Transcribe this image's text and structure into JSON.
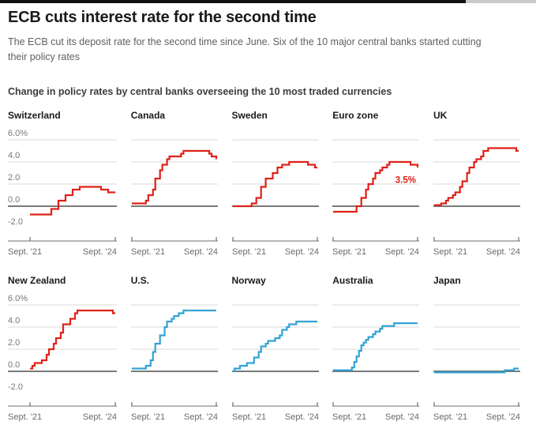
{
  "header": {
    "title": "ECB cuts interest rate for the second time",
    "subtitle": "The ECB cut its deposit rate for the second time since June. Six of the 10 major central banks started cutting their policy rates",
    "section_heading": "Change in policy rates by central banks overseeing the 10 most traded currencies"
  },
  "colors": {
    "cutting_line": "#df2118",
    "holding_line": "#33a3d4",
    "gridline": "#d9d9d9",
    "zero_line": "#4d4d4d",
    "axis_line": "#6e6e6e",
    "tick_label": "#777777",
    "annotation": "#df2118"
  },
  "chart_data": {
    "type": "line",
    "subtype": "step",
    "title": "Change in policy rates by central banks overseeing the 10 most traded currencies",
    "x_axis": {
      "start_label": "Sept. '21",
      "end_label": "Sept. '24",
      "start_month": 0,
      "end_month": 36
    },
    "y_axis": {
      "tick_labels": [
        "6.0%",
        "4.0",
        "2.0",
        "0.0",
        "-2.0"
      ],
      "tick_values": [
        6,
        4,
        2,
        0,
        -2
      ],
      "ylim": [
        -2,
        6
      ],
      "unit": "%",
      "grid": true
    },
    "legend_position": "none",
    "panels": [
      {
        "name": "Switzerland",
        "color": "red",
        "show_y_labels": true,
        "points": [
          [
            0,
            -0.75
          ],
          [
            9,
            -0.25
          ],
          [
            12,
            0.5
          ],
          [
            15,
            1.0
          ],
          [
            18,
            1.5
          ],
          [
            21,
            1.75
          ],
          [
            30,
            1.5
          ],
          [
            33,
            1.25
          ],
          [
            36,
            1.25
          ]
        ]
      },
      {
        "name": "Canada",
        "color": "red",
        "show_y_labels": false,
        "points": [
          [
            0,
            0.25
          ],
          [
            6,
            0.5
          ],
          [
            7,
            1.0
          ],
          [
            9,
            1.5
          ],
          [
            10,
            2.5
          ],
          [
            12,
            3.25
          ],
          [
            13,
            3.75
          ],
          [
            15,
            4.25
          ],
          [
            16,
            4.5
          ],
          [
            21,
            4.75
          ],
          [
            22,
            5.0
          ],
          [
            33,
            4.75
          ],
          [
            34,
            4.5
          ],
          [
            36,
            4.25
          ]
        ]
      },
      {
        "name": "Sweden",
        "color": "red",
        "show_y_labels": false,
        "points": [
          [
            0,
            0.0
          ],
          [
            8,
            0.25
          ],
          [
            10,
            0.75
          ],
          [
            12,
            1.75
          ],
          [
            14,
            2.5
          ],
          [
            17,
            3.0
          ],
          [
            19,
            3.5
          ],
          [
            21,
            3.75
          ],
          [
            24,
            4.0
          ],
          [
            32,
            3.75
          ],
          [
            35,
            3.5
          ],
          [
            36,
            3.5
          ]
        ]
      },
      {
        "name": "Euro zone",
        "color": "red",
        "show_y_labels": false,
        "annotation": {
          "text": "3.5%",
          "y_value": 2.1,
          "align": "right"
        },
        "points": [
          [
            0,
            -0.5
          ],
          [
            10,
            0.0
          ],
          [
            12,
            0.75
          ],
          [
            14,
            1.5
          ],
          [
            15,
            2.0
          ],
          [
            17,
            2.5
          ],
          [
            18,
            3.0
          ],
          [
            20,
            3.25
          ],
          [
            21,
            3.5
          ],
          [
            23,
            3.75
          ],
          [
            24,
            4.0
          ],
          [
            33,
            3.75
          ],
          [
            36,
            3.5
          ]
        ]
      },
      {
        "name": "UK",
        "color": "red",
        "show_y_labels": false,
        "points": [
          [
            0,
            0.1
          ],
          [
            3,
            0.25
          ],
          [
            5,
            0.5
          ],
          [
            6,
            0.75
          ],
          [
            8,
            1.0
          ],
          [
            9,
            1.25
          ],
          [
            11,
            1.75
          ],
          [
            12,
            2.25
          ],
          [
            14,
            3.0
          ],
          [
            15,
            3.5
          ],
          [
            17,
            4.0
          ],
          [
            18,
            4.25
          ],
          [
            20,
            4.5
          ],
          [
            21,
            5.0
          ],
          [
            23,
            5.25
          ],
          [
            35,
            5.0
          ],
          [
            36,
            5.0
          ]
        ]
      },
      {
        "name": "New Zealand",
        "color": "red",
        "show_y_labels": true,
        "points": [
          [
            0,
            0.25
          ],
          [
            1,
            0.5
          ],
          [
            2,
            0.75
          ],
          [
            5,
            1.0
          ],
          [
            7,
            1.5
          ],
          [
            8,
            2.0
          ],
          [
            10,
            2.5
          ],
          [
            11,
            3.0
          ],
          [
            13,
            3.5
          ],
          [
            14,
            4.25
          ],
          [
            17,
            4.75
          ],
          [
            19,
            5.25
          ],
          [
            20,
            5.5
          ],
          [
            35,
            5.25
          ],
          [
            36,
            5.25
          ]
        ]
      },
      {
        "name": "U.S.",
        "color": "blue",
        "show_y_labels": false,
        "points": [
          [
            0,
            0.25
          ],
          [
            6,
            0.5
          ],
          [
            8,
            1.0
          ],
          [
            9,
            1.75
          ],
          [
            10,
            2.5
          ],
          [
            12,
            3.25
          ],
          [
            14,
            4.0
          ],
          [
            15,
            4.5
          ],
          [
            17,
            4.75
          ],
          [
            18,
            5.0
          ],
          [
            20,
            5.25
          ],
          [
            22,
            5.5
          ],
          [
            36,
            5.5
          ]
        ]
      },
      {
        "name": "Norway",
        "color": "blue",
        "show_y_labels": false,
        "points": [
          [
            0,
            0.0
          ],
          [
            0.7,
            0.25
          ],
          [
            3,
            0.5
          ],
          [
            6,
            0.75
          ],
          [
            9,
            1.25
          ],
          [
            11,
            1.75
          ],
          [
            12,
            2.25
          ],
          [
            14,
            2.5
          ],
          [
            15,
            2.75
          ],
          [
            18,
            3.0
          ],
          [
            20,
            3.25
          ],
          [
            21,
            3.75
          ],
          [
            23,
            4.0
          ],
          [
            24,
            4.25
          ],
          [
            27,
            4.5
          ],
          [
            36,
            4.5
          ]
        ]
      },
      {
        "name": "Australia",
        "color": "blue",
        "show_y_labels": false,
        "points": [
          [
            0,
            0.1
          ],
          [
            8,
            0.35
          ],
          [
            9,
            0.85
          ],
          [
            10,
            1.35
          ],
          [
            11,
            1.85
          ],
          [
            12,
            2.35
          ],
          [
            13,
            2.6
          ],
          [
            14,
            2.85
          ],
          [
            15,
            3.1
          ],
          [
            17,
            3.35
          ],
          [
            18,
            3.6
          ],
          [
            20,
            3.85
          ],
          [
            21,
            4.1
          ],
          [
            26,
            4.35
          ],
          [
            36,
            4.35
          ]
        ]
      },
      {
        "name": "Japan",
        "color": "blue",
        "show_y_labels": false,
        "points": [
          [
            0,
            -0.1
          ],
          [
            30,
            0.1
          ],
          [
            34,
            0.25
          ],
          [
            36,
            0.25
          ]
        ]
      }
    ]
  }
}
